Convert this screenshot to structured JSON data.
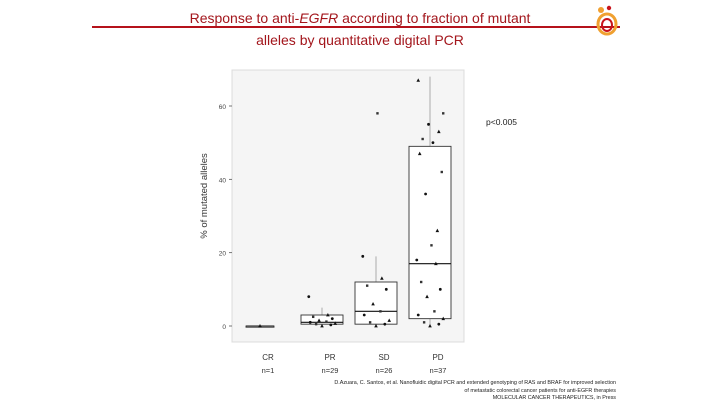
{
  "slide": {
    "title_line1_a": "Response to anti-",
    "title_line1_em": "EGFR",
    "title_line1_b": " according to fraction of mutant",
    "title_line2": "alleles by quantitative digital PCR",
    "citation_lines": [
      "D.Azuara, C. Santos, et al. Nanofluidic digital PCR and extended genotyping of RAS and BRAF for improved selection",
      "of metastatic colorectal cancer patients for anti-EGFR therapies",
      "MOLECULAR CANCER THERAPEUTICS, in Press"
    ],
    "colors": {
      "title": "#a3161c",
      "rule": "#b5121b",
      "logo_orange": "#f0a030",
      "logo_red": "#c8141c"
    }
  },
  "chart_data": {
    "type": "box",
    "ylabel": "% of mutated alleles",
    "yticks": [
      0,
      20,
      40,
      60
    ],
    "ylim": [
      -3,
      70
    ],
    "grid": false,
    "annotation": "p<0.005",
    "categories": [
      "CR",
      "PR",
      "SD",
      "PD"
    ],
    "counts": [
      "n=1",
      "n=29",
      "n=26",
      "n=37"
    ],
    "boxes": [
      {
        "q1": 0,
        "median": 0,
        "q3": 0,
        "low": 0,
        "high": 0
      },
      {
        "q1": 0.5,
        "median": 1,
        "q3": 3,
        "low": 0,
        "high": 5
      },
      {
        "q1": 0.5,
        "median": 4,
        "q3": 12,
        "low": 0,
        "high": 19
      },
      {
        "q1": 2,
        "median": 17,
        "q3": 49,
        "low": 0,
        "high": 68
      }
    ],
    "points": [
      {
        "category": "CR",
        "values": [
          0
        ]
      },
      {
        "category": "PR",
        "values": [
          0,
          0.3,
          0.5,
          0.7,
          1,
          1.2,
          1.5,
          2,
          2.5,
          3,
          8
        ]
      },
      {
        "category": "SD",
        "values": [
          0,
          0.5,
          1,
          1.5,
          3,
          4,
          6,
          10,
          11,
          13,
          19,
          58
        ]
      },
      {
        "category": "PD",
        "values": [
          0,
          0.5,
          1,
          2,
          3,
          4,
          8,
          10,
          12,
          17,
          18,
          22,
          26,
          36,
          42,
          47,
          50,
          51,
          53,
          55,
          58,
          67
        ]
      }
    ]
  }
}
